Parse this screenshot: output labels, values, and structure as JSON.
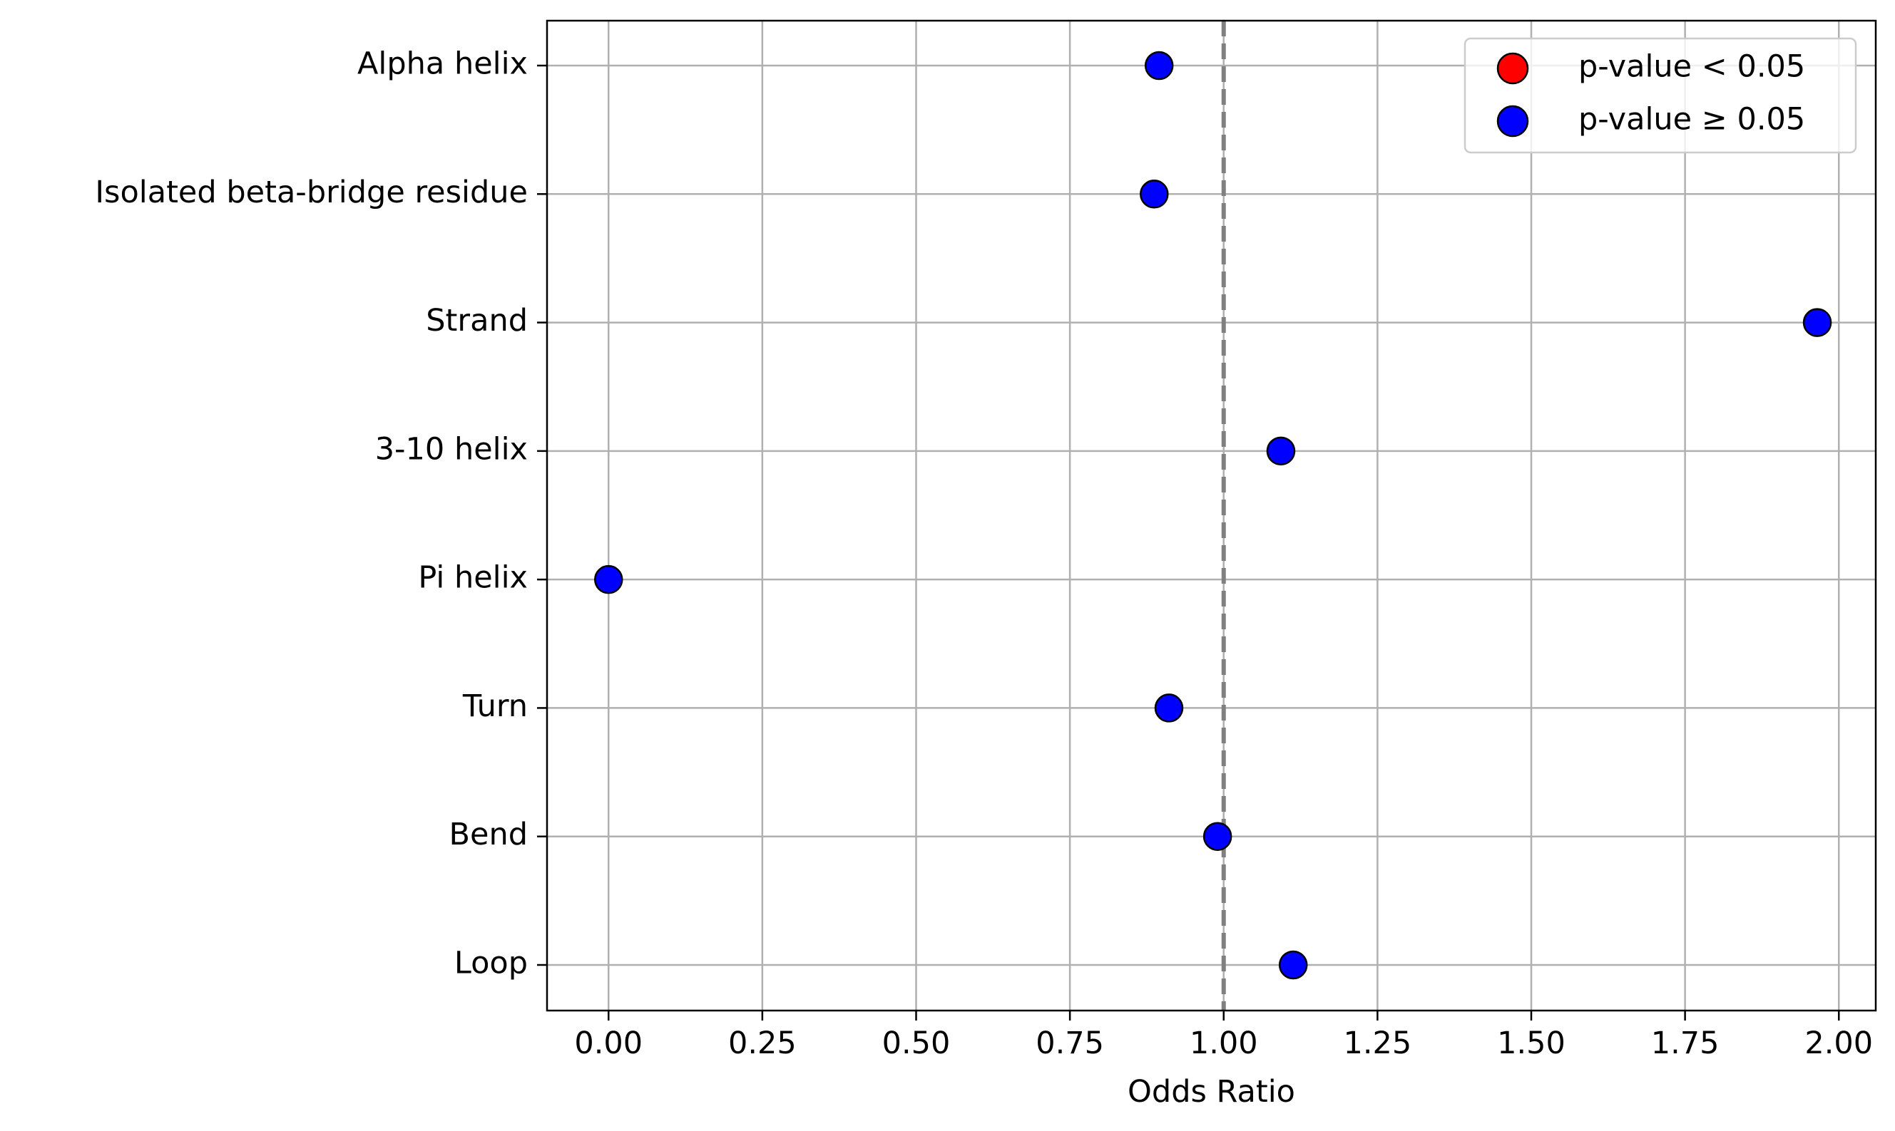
{
  "chart_data": {
    "type": "scatter",
    "title": "",
    "xlabel": "Odds Ratio",
    "ylabel": "",
    "xlim": [
      -0.1,
      2.06
    ],
    "xticks": [
      0.0,
      0.25,
      0.5,
      0.75,
      1.0,
      1.25,
      1.5,
      1.75,
      2.0
    ],
    "xtick_labels": [
      "0.00",
      "0.25",
      "0.50",
      "0.75",
      "1.00",
      "1.25",
      "1.50",
      "1.75",
      "2.00"
    ],
    "categories": [
      "Alpha helix",
      "Isolated beta-bridge residue",
      "Strand",
      "3-10 helix",
      "Pi helix",
      "Turn",
      "Bend",
      "Loop"
    ],
    "values": [
      0.895,
      0.887,
      1.965,
      1.093,
      0.0,
      0.911,
      0.99,
      1.113
    ],
    "point_colors": [
      "#0000ff",
      "#0000ff",
      "#0000ff",
      "#0000ff",
      "#0000ff",
      "#0000ff",
      "#0000ff",
      "#0000ff"
    ],
    "reference_line": {
      "x": 1.0,
      "style": "dashed",
      "color": "#808080"
    },
    "grid": true,
    "legend": {
      "placement": "top-right",
      "entries": [
        {
          "label": "p-value < 0.05",
          "color": "#ff0000"
        },
        {
          "label": "p-value ≥ 0.05",
          "color": "#0000ff"
        }
      ]
    }
  }
}
